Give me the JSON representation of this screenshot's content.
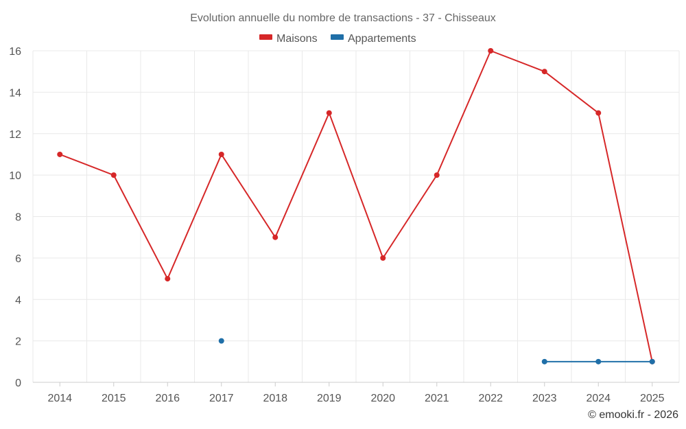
{
  "chart_data": {
    "type": "line",
    "title": "Evolution annuelle du nombre de transactions - 37 - Chisseaux",
    "xlabel": "",
    "ylabel": "",
    "categories": [
      "2014",
      "2015",
      "2016",
      "2017",
      "2018",
      "2019",
      "2020",
      "2021",
      "2022",
      "2023",
      "2024",
      "2025"
    ],
    "ylim": [
      0,
      16
    ],
    "yticks": [
      0,
      2,
      4,
      6,
      8,
      10,
      12,
      14,
      16
    ],
    "grid": true,
    "legend_position": "top-center",
    "series": [
      {
        "name": "Maisons",
        "color": "#d62728",
        "values": [
          11,
          10,
          5,
          11,
          7,
          13,
          6,
          10,
          16,
          15,
          13,
          1
        ]
      },
      {
        "name": "Appartements",
        "color": "#1f6fa8",
        "values": [
          null,
          null,
          null,
          2,
          null,
          null,
          null,
          null,
          null,
          1,
          1,
          1
        ]
      }
    ]
  },
  "credit": "© emooki.fr - 2026"
}
